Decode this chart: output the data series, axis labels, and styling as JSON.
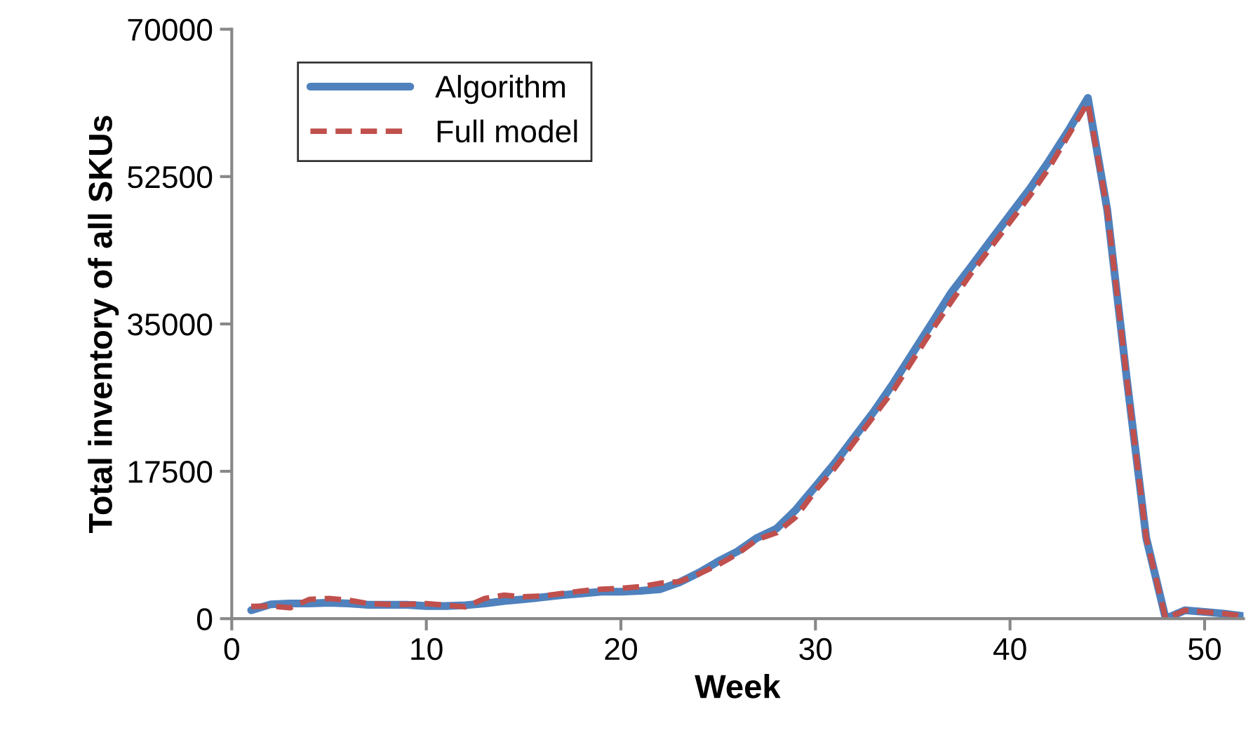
{
  "chart_data": {
    "type": "line",
    "xlabel": "Week",
    "ylabel": "Total inventory of all SKUs",
    "x": [
      1,
      2,
      3,
      4,
      5,
      6,
      7,
      8,
      9,
      10,
      11,
      12,
      13,
      14,
      15,
      16,
      17,
      18,
      19,
      20,
      21,
      22,
      23,
      24,
      25,
      26,
      27,
      28,
      29,
      30,
      31,
      32,
      33,
      34,
      35,
      36,
      37,
      38,
      39,
      40,
      41,
      42,
      43,
      44,
      45,
      46,
      47,
      48,
      49,
      50,
      51,
      52
    ],
    "series": [
      {
        "name": "Algorithm",
        "color": "#4f81bd",
        "line_style": "solid",
        "values": [
          1000,
          1700,
          1800,
          1800,
          1900,
          1800,
          1650,
          1650,
          1650,
          1500,
          1500,
          1600,
          1800,
          2100,
          2300,
          2550,
          2800,
          3000,
          3200,
          3200,
          3300,
          3500,
          4300,
          5450,
          6800,
          8000,
          9600,
          10700,
          12950,
          15700,
          18500,
          21550,
          24600,
          27950,
          31550,
          35150,
          38800,
          41800,
          44900,
          47950,
          51000,
          54350,
          57950,
          61850,
          48500,
          28500,
          9600,
          0,
          1000,
          800,
          600,
          300
        ]
      },
      {
        "name": "Full model",
        "color": "#c0504d",
        "line_style": "dashed",
        "values": [
          1450,
          1500,
          1300,
          2300,
          2400,
          2200,
          1800,
          1700,
          1700,
          1800,
          1600,
          1400,
          2400,
          2800,
          2600,
          2700,
          3000,
          3300,
          3500,
          3600,
          3800,
          4200,
          4400,
          5300,
          6400,
          7700,
          9400,
          10200,
          12100,
          15200,
          17900,
          21000,
          24050,
          27100,
          30700,
          34300,
          37700,
          41000,
          44050,
          47100,
          50150,
          53500,
          57400,
          61300,
          48500,
          28500,
          9600,
          0,
          1000,
          800,
          600,
          300
        ]
      }
    ],
    "xlim": [
      0,
      52
    ],
    "ylim": [
      0,
      70000
    ],
    "xticks": [
      0,
      10,
      20,
      30,
      40,
      50
    ],
    "yticks": [
      0,
      17500,
      35000,
      52500,
      70000
    ],
    "grid": false,
    "legend": "top left",
    "marker": "none"
  }
}
